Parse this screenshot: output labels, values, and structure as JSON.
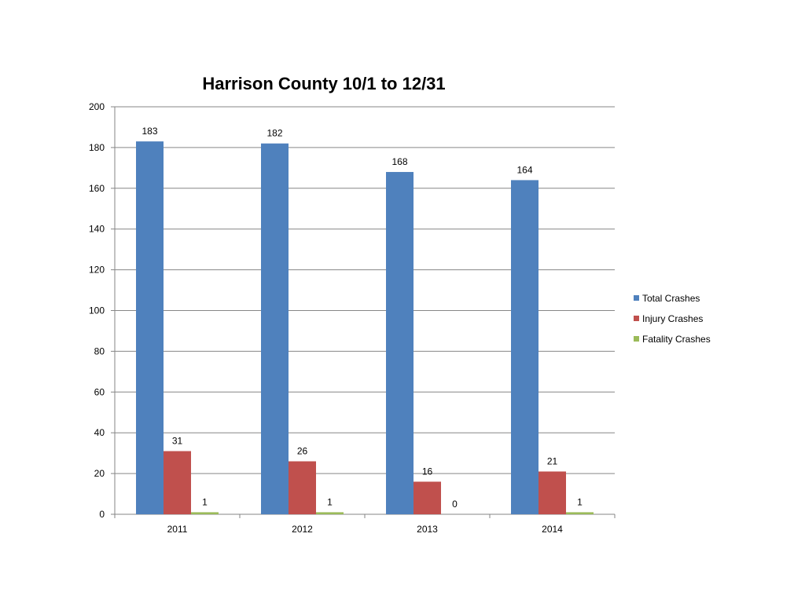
{
  "chart_data": {
    "type": "bar",
    "title": "Harrison County 10/1 to 12/31",
    "categories": [
      "2011",
      "2012",
      "2013",
      "2014"
    ],
    "series": [
      {
        "name": "Total Crashes",
        "color": "#4F81BD",
        "values": [
          183,
          182,
          168,
          164
        ],
        "labels": [
          "183",
          "182",
          "168",
          "164"
        ]
      },
      {
        "name": "Injury Crashes",
        "color": "#C0504D",
        "values": [
          31,
          26,
          16,
          21
        ],
        "labels": [
          "31",
          "26",
          "16",
          "21"
        ]
      },
      {
        "name": "Fatality Crashes",
        "color": "#9BBB59",
        "values": [
          1,
          1,
          0,
          1
        ],
        "labels": [
          "1",
          "1",
          "0",
          "1"
        ]
      }
    ],
    "xlabel": "",
    "ylabel": "",
    "ylim": [
      0,
      200
    ],
    "yticks": [
      0,
      20,
      40,
      60,
      80,
      100,
      120,
      140,
      160,
      180,
      200
    ],
    "ytick_labels": [
      "0",
      "20",
      "40",
      "60",
      "80",
      "100",
      "120",
      "140",
      "160",
      "180",
      "200"
    ],
    "grid": true,
    "legend": "right"
  }
}
